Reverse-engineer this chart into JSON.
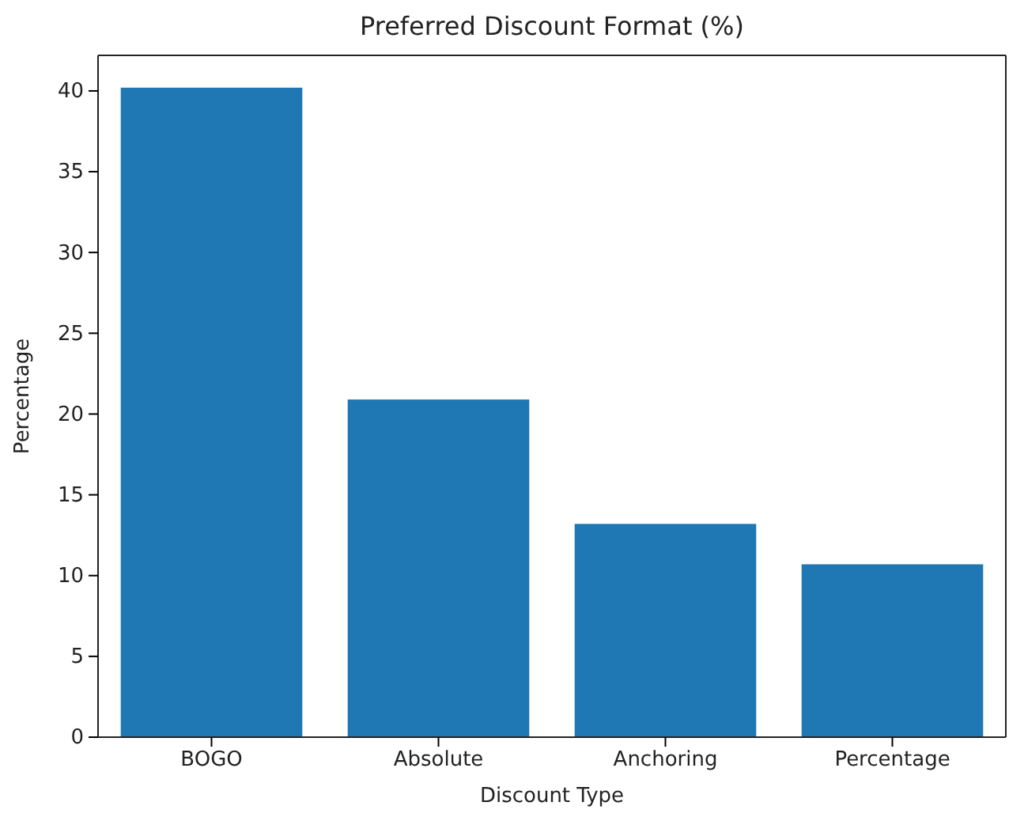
{
  "chart_data": {
    "type": "bar",
    "title": "Preferred Discount Format (%)",
    "xlabel": "Discount Type",
    "ylabel": "Percentage",
    "categories": [
      "BOGO",
      "Absolute",
      "Anchoring",
      "Percentage"
    ],
    "values": [
      40.2,
      20.9,
      13.2,
      10.7
    ],
    "color": "#1f77b4",
    "ylim": [
      0,
      42.2
    ],
    "yticks": [
      0,
      5,
      10,
      15,
      20,
      25,
      30,
      35,
      40
    ],
    "grid": false
  }
}
